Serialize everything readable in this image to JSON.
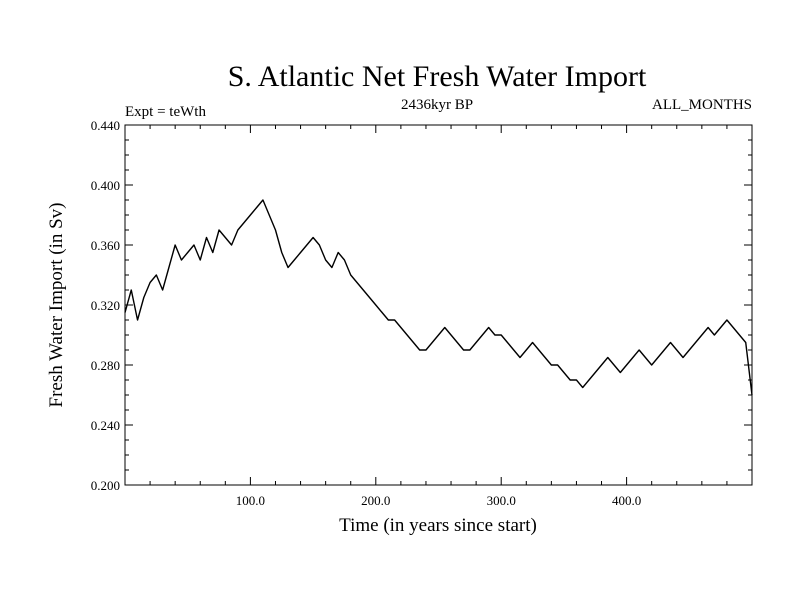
{
  "chart_data": {
    "type": "line",
    "title": "S. Atlantic Net Fresh Water Import",
    "subtitle_left": "Expt = teWth",
    "subtitle_center": "2436kyr BP",
    "subtitle_right": "ALL_MONTHS",
    "xlabel": "Time (in years since start)",
    "ylabel": "Fresh Water Import (in Sv)",
    "xlim": [
      0,
      500
    ],
    "ylim": [
      0.2,
      0.44
    ],
    "x_ticks": [
      100,
      200,
      300,
      400
    ],
    "x_tick_labels": [
      "100.0",
      "200.0",
      "300.0",
      "400.0"
    ],
    "y_ticks": [
      0.2,
      0.24,
      0.28,
      0.32,
      0.36,
      0.4,
      0.44
    ],
    "y_tick_labels": [
      "0.200",
      "0.240",
      "0.280",
      "0.320",
      "0.360",
      "0.400",
      "0.440"
    ],
    "grid": false,
    "series": [
      {
        "name": "Fresh Water Import",
        "x": [
          0,
          5,
          10,
          15,
          20,
          25,
          30,
          35,
          40,
          45,
          50,
          55,
          60,
          65,
          70,
          75,
          80,
          85,
          90,
          95,
          100,
          105,
          110,
          115,
          120,
          125,
          130,
          135,
          140,
          145,
          150,
          155,
          160,
          165,
          170,
          175,
          180,
          185,
          190,
          195,
          200,
          205,
          210,
          215,
          220,
          225,
          230,
          235,
          240,
          245,
          250,
          255,
          260,
          265,
          270,
          275,
          280,
          285,
          290,
          295,
          300,
          305,
          310,
          315,
          320,
          325,
          330,
          335,
          340,
          345,
          350,
          355,
          360,
          365,
          370,
          375,
          380,
          385,
          390,
          395,
          400,
          405,
          410,
          415,
          420,
          425,
          430,
          435,
          440,
          445,
          450,
          455,
          460,
          465,
          470,
          475,
          480,
          485,
          490,
          495,
          500
        ],
        "values": [
          0.315,
          0.33,
          0.31,
          0.325,
          0.335,
          0.34,
          0.33,
          0.345,
          0.36,
          0.35,
          0.355,
          0.36,
          0.35,
          0.365,
          0.355,
          0.37,
          0.365,
          0.36,
          0.37,
          0.375,
          0.38,
          0.385,
          0.39,
          0.38,
          0.37,
          0.355,
          0.345,
          0.35,
          0.355,
          0.36,
          0.365,
          0.36,
          0.35,
          0.345,
          0.355,
          0.35,
          0.34,
          0.335,
          0.33,
          0.325,
          0.32,
          0.315,
          0.31,
          0.31,
          0.305,
          0.3,
          0.295,
          0.29,
          0.29,
          0.295,
          0.3,
          0.305,
          0.3,
          0.295,
          0.29,
          0.29,
          0.295,
          0.3,
          0.305,
          0.3,
          0.3,
          0.295,
          0.29,
          0.285,
          0.29,
          0.295,
          0.29,
          0.285,
          0.28,
          0.28,
          0.275,
          0.27,
          0.27,
          0.265,
          0.27,
          0.275,
          0.28,
          0.285,
          0.28,
          0.275,
          0.28,
          0.285,
          0.29,
          0.285,
          0.28,
          0.285,
          0.29,
          0.295,
          0.29,
          0.285,
          0.29,
          0.295,
          0.3,
          0.305,
          0.3,
          0.305,
          0.31,
          0.305,
          0.3,
          0.295,
          0.26
        ]
      }
    ]
  }
}
